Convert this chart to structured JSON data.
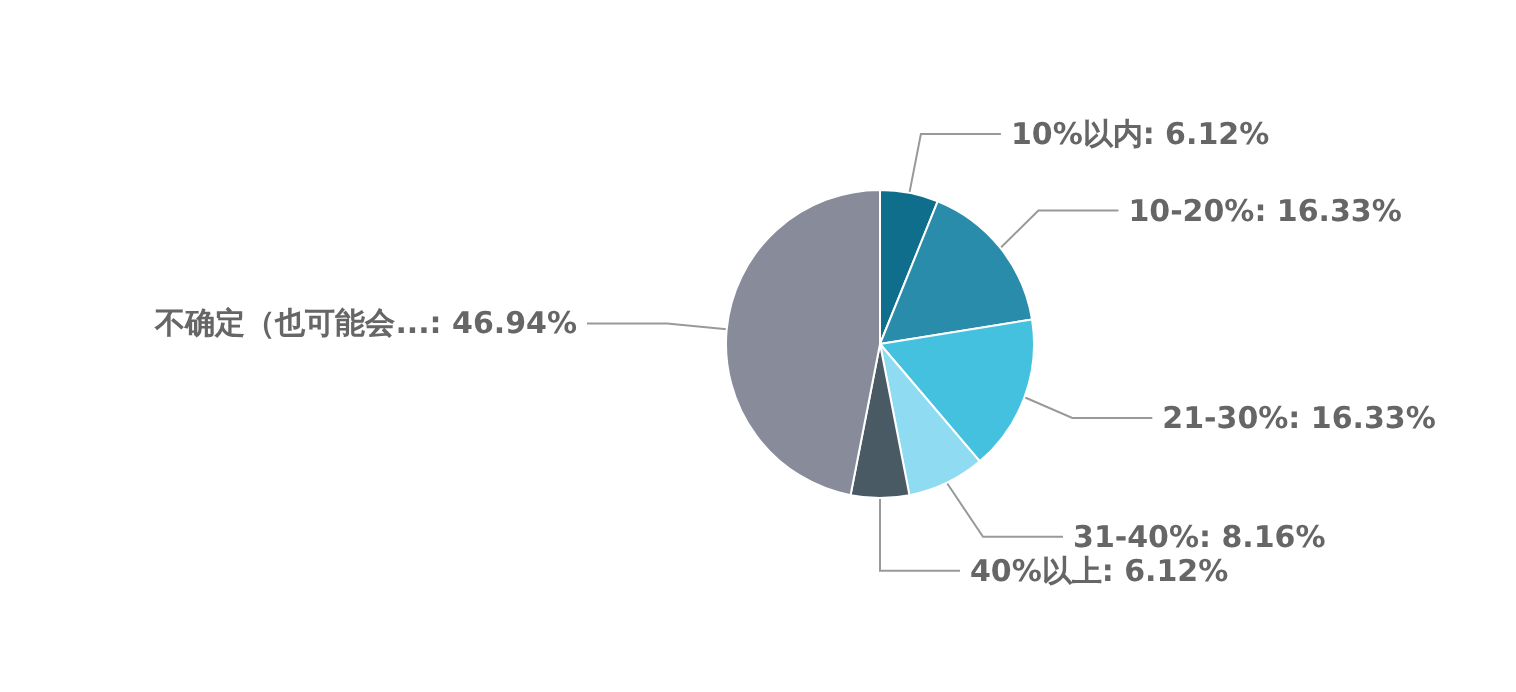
{
  "chart_data": {
    "type": "pie",
    "categories": [
      "10%以内",
      "10-20%",
      "21-30%",
      "31-40%",
      "40%以上",
      "不确定（也可能会..."
    ],
    "values": [
      6.12,
      16.33,
      16.33,
      8.16,
      6.12,
      46.94
    ],
    "value_labels": [
      ": 6.12%",
      ": 16.33%",
      ": 16.33%",
      ": 8.16%",
      ": 6.12%",
      ": 46.94%"
    ],
    "colors": [
      "#0e6e8c",
      "#2a8cab",
      "#45c1e0",
      "#8fdcf2",
      "#4a5a65",
      "#878b9a"
    ],
    "legend": false
  }
}
